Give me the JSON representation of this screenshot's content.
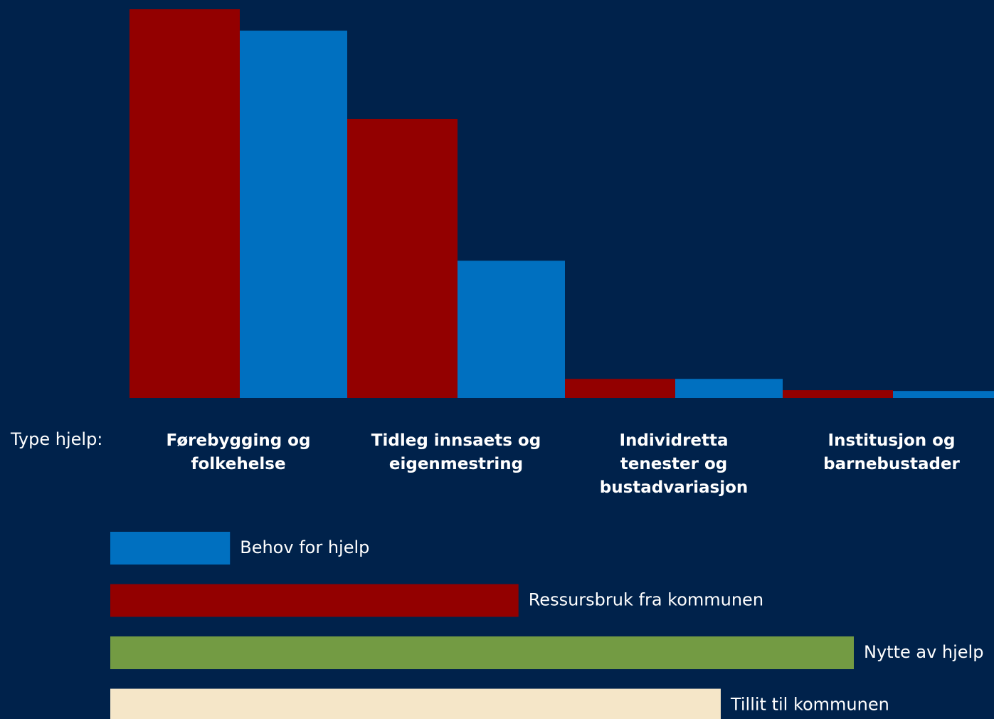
{
  "chart_data": [
    {
      "type": "bar",
      "x_label": "Type hjelp:",
      "categories": [
        "Førebygging og folkehelse",
        "Tidleg innsaets og eigenmestring",
        "Individretta tenester og bustadvariasjon",
        "Institusjon og barnebustader"
      ],
      "series": [
        {
          "color": "#930000",
          "values": [
            100,
            71.8,
            4.9,
            2
          ]
        },
        {
          "color": "#0070c0",
          "values": [
            94.5,
            35.3,
            4.9,
            1.8
          ]
        }
      ],
      "ylim": [
        0,
        100
      ]
    },
    {
      "type": "hbar",
      "categories": [
        "Behov for hjelp",
        "Ressursbruk fra kommunen",
        "Nytte av hjelp",
        "Tillit til kommunen"
      ],
      "values": [
        16.1,
        54.9,
        100,
        82.1
      ],
      "colors": [
        "#0070c0",
        "#930000",
        "#739b43",
        "#f5e6c8"
      ],
      "xlim": [
        0,
        100
      ]
    }
  ]
}
